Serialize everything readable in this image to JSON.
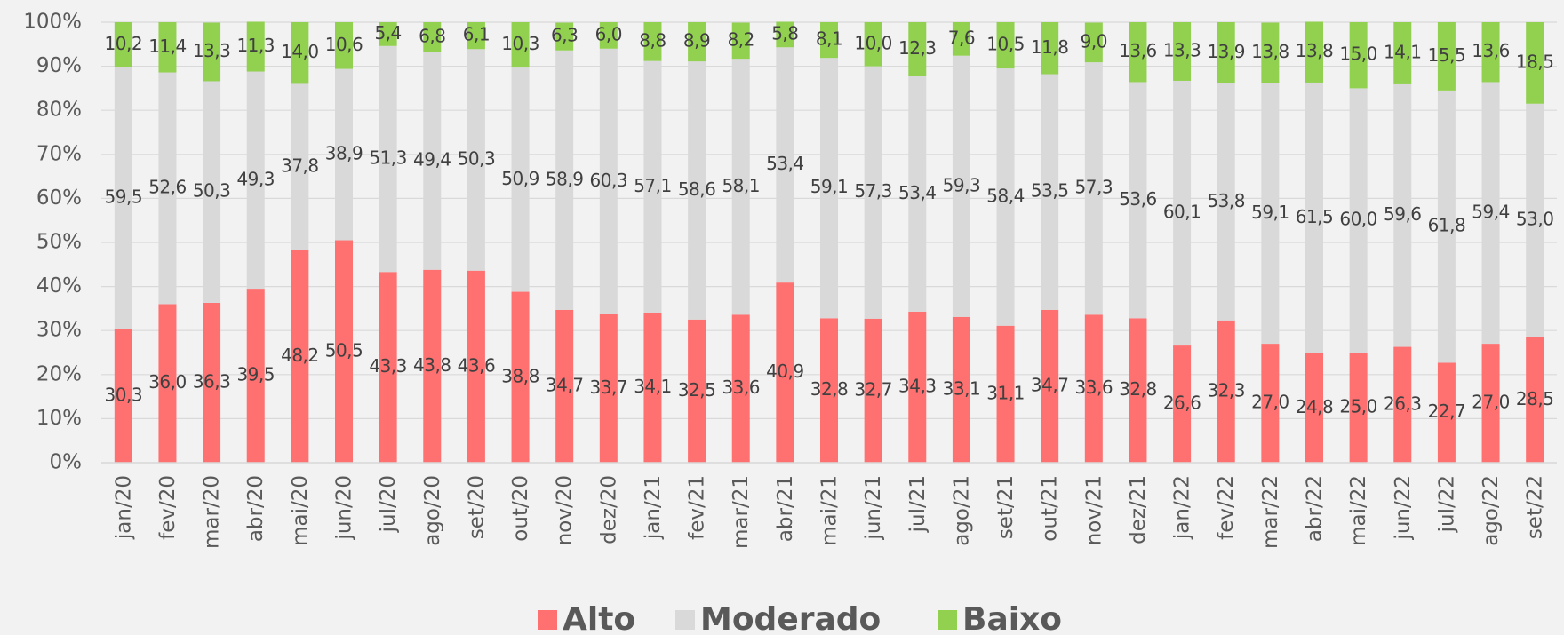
{
  "chart_data": {
    "type": "stacked_bar",
    "categories": [
      "jan/20",
      "fev/20",
      "mar/20",
      "abr/20",
      "mai/20",
      "jun/20",
      "jul/20",
      "ago/20",
      "set/20",
      "out/20",
      "nov/20",
      "dez/20",
      "jan/21",
      "fev/21",
      "mar/21",
      "abr/21",
      "mai/21",
      "jun/21",
      "jul/21",
      "ago/21",
      "set/21",
      "out/21",
      "nov/21",
      "dez/21",
      "jan/22",
      "fev/22",
      "mar/22",
      "abr/22",
      "mai/22",
      "jun/22",
      "jul/22",
      "ago/22",
      "set/22"
    ],
    "series": [
      {
        "name": "Alto",
        "color": "#ff7070",
        "values": [
          30.3,
          36.0,
          36.3,
          39.5,
          48.2,
          50.5,
          43.3,
          43.8,
          43.6,
          38.8,
          34.7,
          33.7,
          34.1,
          32.5,
          33.6,
          40.9,
          32.8,
          32.7,
          34.3,
          33.1,
          31.1,
          34.7,
          33.6,
          32.8,
          26.6,
          32.3,
          27.0,
          24.8,
          25.0,
          26.3,
          22.7,
          27.0,
          28.5
        ],
        "value_labels": [
          "30,3",
          "36,0",
          "36,3",
          "39,5",
          "48,2",
          "50,5",
          "43,3",
          "43,8",
          "43,6",
          "38,8",
          "34,7",
          "33,7",
          "34,1",
          "32,5",
          "33,6",
          "40,9",
          "32,8",
          "32,7",
          "34,3",
          "33,1",
          "31,1",
          "34,7",
          "33,6",
          "32,8",
          "26,6",
          "32,3",
          "27,0",
          "24,8",
          "25,0",
          "26,3",
          "22,7",
          "27,0",
          "28,5"
        ]
      },
      {
        "name": "Moderado",
        "color": "#d9d9d9",
        "values": [
          59.5,
          52.6,
          50.3,
          49.3,
          37.8,
          38.9,
          51.3,
          49.4,
          50.3,
          50.9,
          58.9,
          60.3,
          57.1,
          58.6,
          58.1,
          53.4,
          59.1,
          57.3,
          53.4,
          59.3,
          58.4,
          53.5,
          57.3,
          53.6,
          60.1,
          53.8,
          59.1,
          61.5,
          60.0,
          59.6,
          61.8,
          59.4,
          53.0
        ],
        "value_labels": [
          "59,5",
          "52,6",
          "50,3",
          "49,3",
          "37,8",
          "38,9",
          "51,3",
          "49,4",
          "50,3",
          "50,9",
          "58,9",
          "60,3",
          "57,1",
          "58,6",
          "58,1",
          "53,4",
          "59,1",
          "57,3",
          "53,4",
          "59,3",
          "58,4",
          "53,5",
          "57,3",
          "53,6",
          "60,1",
          "53,8",
          "59,1",
          "61,5",
          "60,0",
          "59,6",
          "61,8",
          "59,4",
          "53,0"
        ]
      },
      {
        "name": "Baixo",
        "color": "#92d050",
        "values": [
          10.2,
          11.4,
          13.3,
          11.3,
          14.0,
          10.6,
          5.4,
          6.8,
          6.1,
          10.3,
          6.3,
          6.0,
          8.8,
          8.9,
          8.2,
          5.8,
          8.1,
          10.0,
          12.3,
          7.6,
          10.5,
          11.8,
          9.0,
          13.6,
          13.3,
          13.9,
          13.8,
          13.8,
          15.0,
          14.1,
          15.5,
          13.6,
          18.5
        ],
        "value_labels": [
          "10,2",
          "11,4",
          "13,3",
          "11,3",
          "14,0",
          "10,6",
          "5,4",
          "6,8",
          "6,1",
          "10,3",
          "6,3",
          "6,0",
          "8,8",
          "8,9",
          "8,2",
          "5,8",
          "8,1",
          "10,0",
          "12,3",
          "7,6",
          "10,5",
          "11,8",
          "9,0",
          "13,6",
          "13,3",
          "13,9",
          "13,8",
          "13,8",
          "15,0",
          "14,1",
          "15,5",
          "13,6",
          "18,5"
        ]
      }
    ],
    "ylim": [
      0,
      100
    ],
    "yticks": [
      {
        "value": 0,
        "label": "0%"
      },
      {
        "value": 10,
        "label": "10%"
      },
      {
        "value": 20,
        "label": "20%"
      },
      {
        "value": 30,
        "label": "30%"
      },
      {
        "value": 40,
        "label": "40%"
      },
      {
        "value": 50,
        "label": "50%"
      },
      {
        "value": 60,
        "label": "60%"
      },
      {
        "value": 70,
        "label": "70%"
      },
      {
        "value": 80,
        "label": "80%"
      },
      {
        "value": 90,
        "label": "90%"
      },
      {
        "value": 100,
        "label": "100%"
      }
    ],
    "grid": true,
    "legend": "bottom"
  }
}
